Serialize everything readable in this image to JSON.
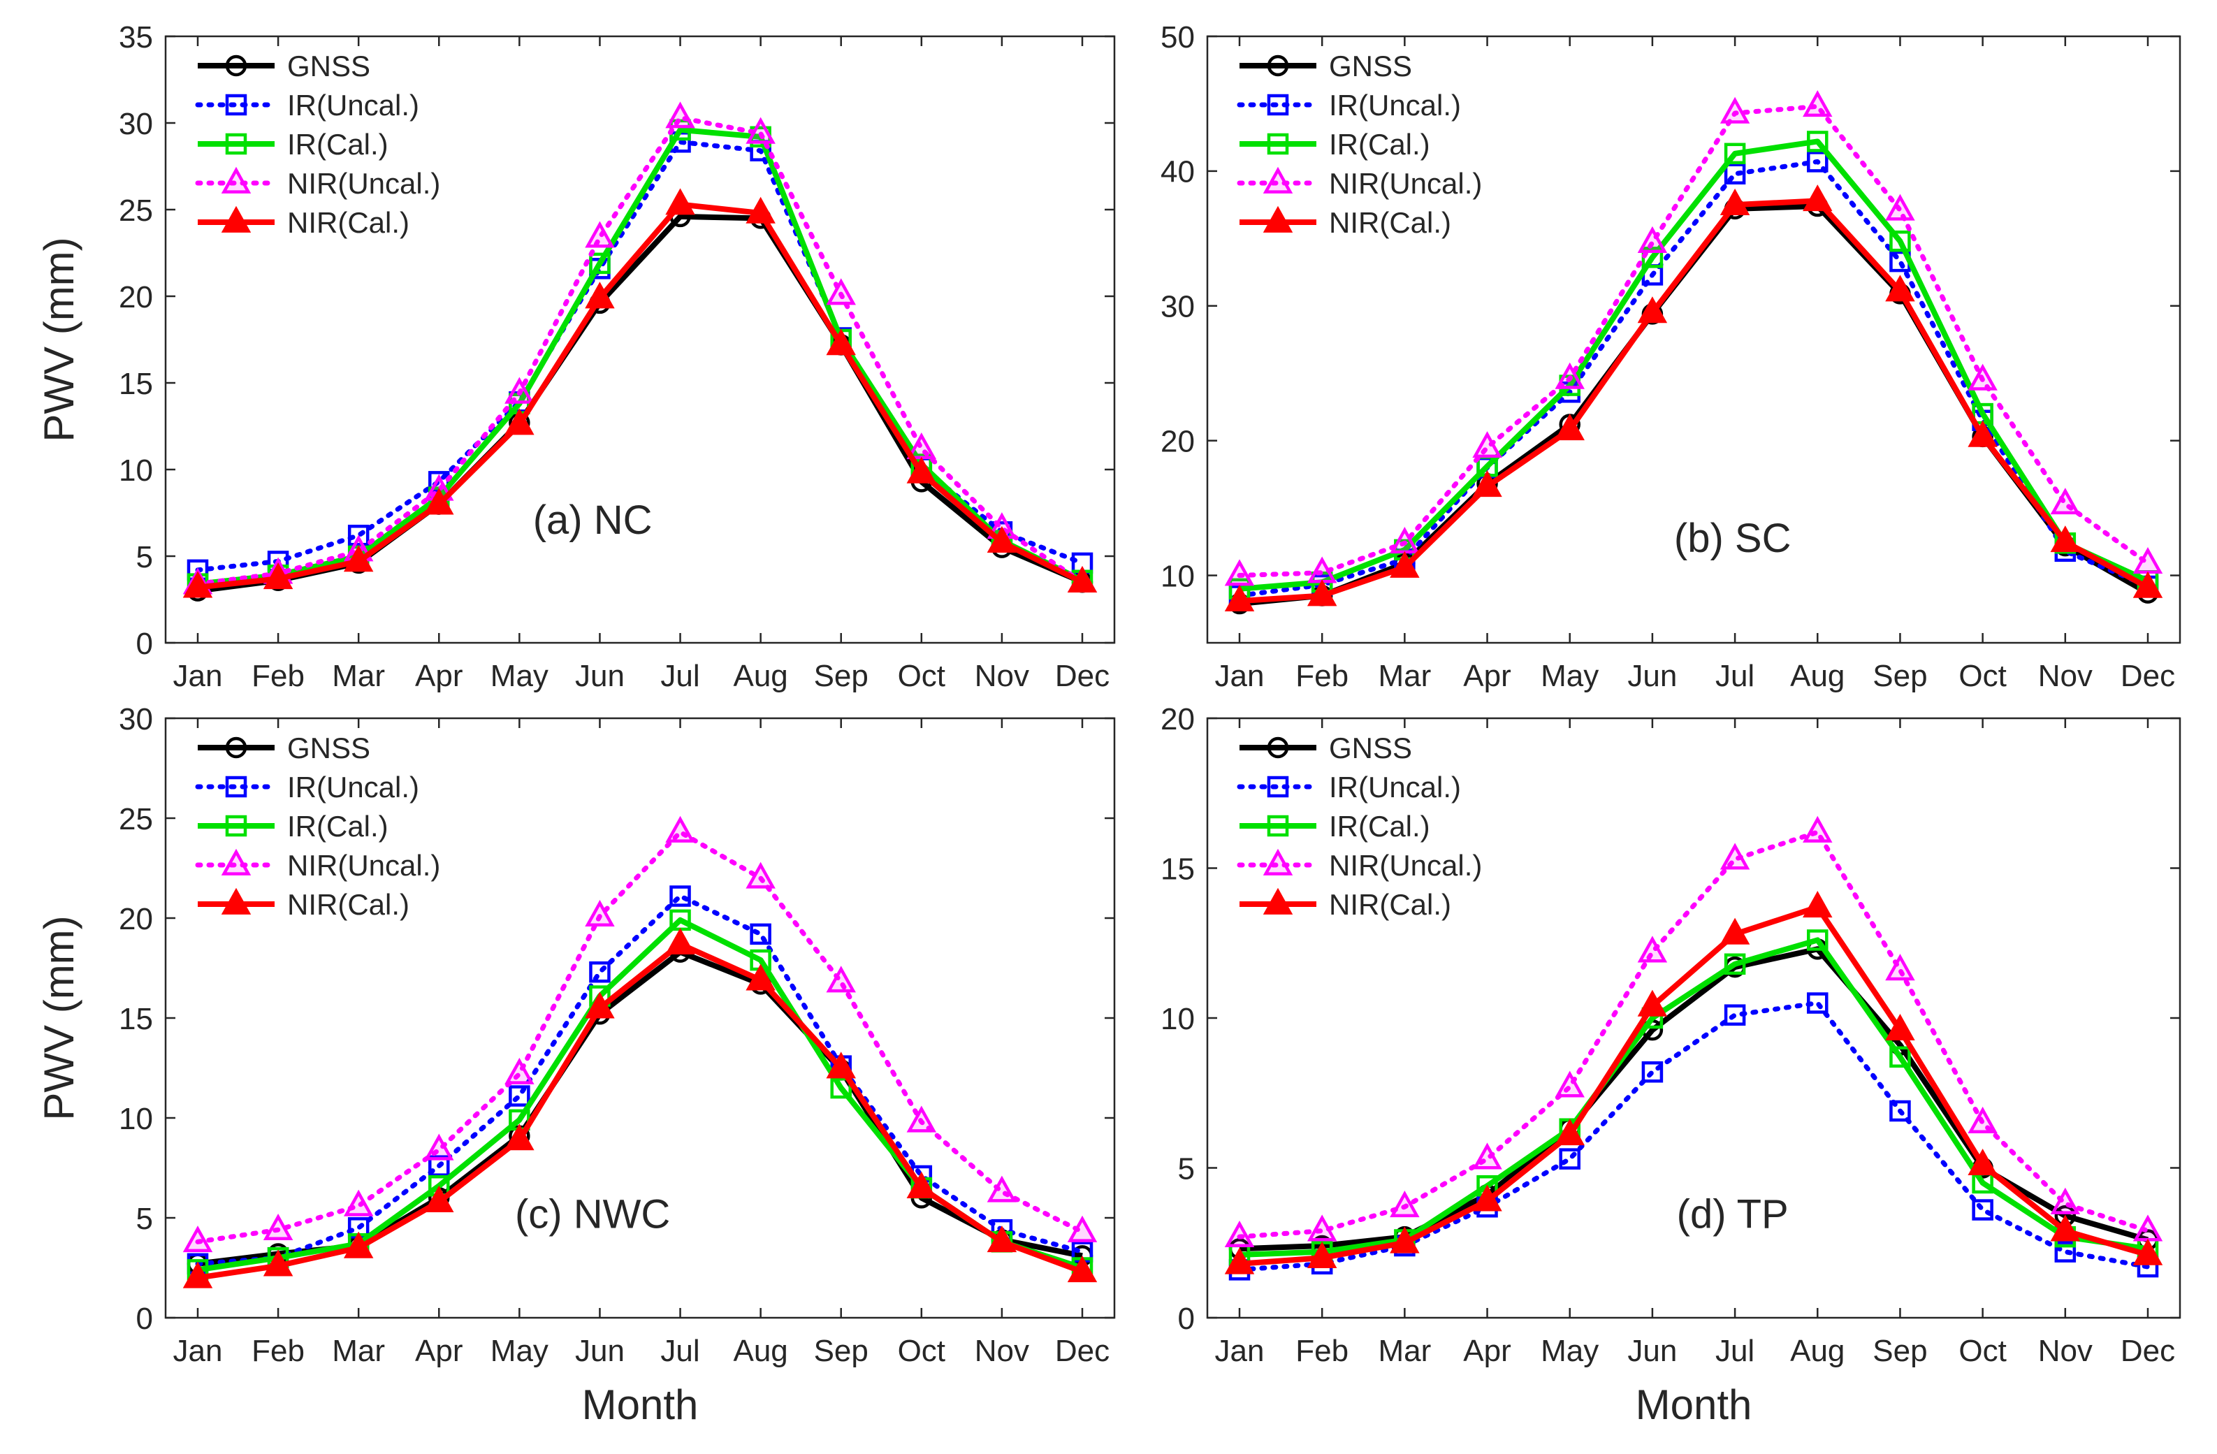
{
  "figure": {
    "shared_xlabel": "Month",
    "shared_ylabel": "PWV (mm)"
  },
  "series_styles": [
    {
      "name": "GNSS",
      "color": "#000000",
      "dash": "solid",
      "marker": "circle"
    },
    {
      "name": "IR(Uncal.)",
      "color": "#0000ff",
      "dash": "dotted",
      "marker": "square"
    },
    {
      "name": "IR(Cal.)",
      "color": "#00e000",
      "dash": "solid",
      "marker": "square"
    },
    {
      "name": "NIR(Uncal.)",
      "color": "#ff00ff",
      "dash": "dotted",
      "marker": "triangle"
    },
    {
      "name": "NIR(Cal.)",
      "color": "#ff0000",
      "dash": "solid",
      "marker": "triangle"
    }
  ],
  "chart_data": [
    {
      "type": "line",
      "title": "(a) NC",
      "xlabel": "",
      "ylabel": "PWV (mm)",
      "categories": [
        "Jan",
        "Feb",
        "Mar",
        "Apr",
        "May",
        "Jun",
        "Jul",
        "Aug",
        "Sep",
        "Oct",
        "Nov",
        "Dec"
      ],
      "ylim": [
        0,
        35
      ],
      "yticks": [
        0,
        5,
        10,
        15,
        20,
        25,
        30,
        35
      ],
      "legend": "top-left",
      "series": [
        {
          "name": "GNSS",
          "values": [
            3.0,
            3.6,
            4.6,
            8.0,
            12.7,
            19.6,
            24.6,
            24.5,
            17.2,
            9.3,
            5.5,
            3.5
          ]
        },
        {
          "name": "IR(Uncal.)",
          "values": [
            4.2,
            4.7,
            6.2,
            9.3,
            13.9,
            21.6,
            28.9,
            28.4,
            17.6,
            10.1,
            6.4,
            4.6
          ]
        },
        {
          "name": "IR(Cal.)",
          "values": [
            3.4,
            3.9,
            5.0,
            8.4,
            13.8,
            21.9,
            29.6,
            29.2,
            17.5,
            10.3,
            5.9,
            3.6
          ]
        },
        {
          "name": "NIR(Uncal.)",
          "values": [
            3.4,
            4.0,
            5.3,
            8.8,
            14.4,
            23.4,
            30.3,
            29.4,
            20.1,
            11.2,
            6.6,
            3.5
          ]
        },
        {
          "name": "NIR(Cal.)",
          "values": [
            3.2,
            3.7,
            4.7,
            8.0,
            12.6,
            19.9,
            25.3,
            24.8,
            17.2,
            9.8,
            5.8,
            3.5
          ]
        }
      ]
    },
    {
      "type": "line",
      "title": "(b) SC",
      "xlabel": "",
      "ylabel": "",
      "categories": [
        "Jan",
        "Feb",
        "Mar",
        "Apr",
        "May",
        "Jun",
        "Jul",
        "Aug",
        "Sep",
        "Oct",
        "Nov",
        "Dec"
      ],
      "ylim": [
        5,
        50
      ],
      "yticks": [
        10,
        20,
        30,
        40,
        50
      ],
      "legend": "top-left",
      "series": [
        {
          "name": "GNSS",
          "values": [
            7.9,
            8.5,
            10.9,
            16.8,
            21.2,
            29.4,
            37.2,
            37.4,
            30.9,
            20.3,
            12.2,
            8.7
          ]
        },
        {
          "name": "IR(Uncal.)",
          "values": [
            8.5,
            9.3,
            11.2,
            18.0,
            23.6,
            32.3,
            39.8,
            40.7,
            33.3,
            21.5,
            11.8,
            9.2
          ]
        },
        {
          "name": "IR(Cal.)",
          "values": [
            9.0,
            9.5,
            11.9,
            18.1,
            24.1,
            33.6,
            41.3,
            42.2,
            34.8,
            22.0,
            12.4,
            9.6
          ]
        },
        {
          "name": "NIR(Uncal.)",
          "values": [
            10.0,
            10.2,
            12.4,
            19.5,
            24.6,
            34.7,
            44.3,
            44.8,
            37.1,
            24.5,
            15.3,
            10.9
          ]
        },
        {
          "name": "NIR(Cal.)",
          "values": [
            8.1,
            8.5,
            10.6,
            16.6,
            20.8,
            29.5,
            37.5,
            37.8,
            31.1,
            20.3,
            12.5,
            9.1
          ]
        }
      ]
    },
    {
      "type": "line",
      "title": "(c) NWC",
      "xlabel": "Month",
      "ylabel": "PWV (mm)",
      "categories": [
        "Jan",
        "Feb",
        "Mar",
        "Apr",
        "May",
        "Jun",
        "Jul",
        "Aug",
        "Sep",
        "Oct",
        "Nov",
        "Dec"
      ],
      "ylim": [
        0,
        30
      ],
      "yticks": [
        0,
        5,
        10,
        15,
        20,
        25,
        30
      ],
      "legend": "top-left",
      "series": [
        {
          "name": "GNSS",
          "values": [
            2.7,
            3.2,
            3.6,
            6.0,
            9.1,
            15.2,
            18.3,
            16.7,
            12.4,
            6.0,
            3.9,
            3.1
          ]
        },
        {
          "name": "IR(Uncal.)",
          "values": [
            2.7,
            3.0,
            4.5,
            7.6,
            11.1,
            17.3,
            21.1,
            19.2,
            12.6,
            7.1,
            4.4,
            3.3
          ]
        },
        {
          "name": "IR(Cal.)",
          "values": [
            2.4,
            3.0,
            3.7,
            6.6,
            9.9,
            16.1,
            19.9,
            17.9,
            11.5,
            6.5,
            3.8,
            2.5
          ]
        },
        {
          "name": "NIR(Uncal.)",
          "values": [
            3.8,
            4.4,
            5.6,
            8.4,
            12.2,
            20.1,
            24.3,
            22.0,
            16.8,
            9.8,
            6.3,
            4.3
          ]
        },
        {
          "name": "NIR(Cal.)",
          "values": [
            2.0,
            2.6,
            3.5,
            5.8,
            8.9,
            15.5,
            18.7,
            16.9,
            12.5,
            6.5,
            3.8,
            2.3
          ]
        }
      ]
    },
    {
      "type": "line",
      "title": "(d) TP",
      "xlabel": "Month",
      "ylabel": "",
      "categories": [
        "Jan",
        "Feb",
        "Mar",
        "Apr",
        "May",
        "Jun",
        "Jul",
        "Aug",
        "Sep",
        "Oct",
        "Nov",
        "Dec"
      ],
      "ylim": [
        0,
        20
      ],
      "yticks": [
        0,
        5,
        10,
        15,
        20
      ],
      "legend": "top-left",
      "series": [
        {
          "name": "GNSS",
          "values": [
            2.3,
            2.4,
            2.7,
            4.1,
            6.3,
            9.6,
            11.7,
            12.3,
            9.1,
            5.0,
            3.4,
            2.6
          ]
        },
        {
          "name": "IR(Uncal.)",
          "values": [
            1.6,
            1.8,
            2.4,
            3.7,
            5.3,
            8.2,
            10.1,
            10.5,
            6.9,
            3.6,
            2.2,
            1.7
          ]
        },
        {
          "name": "IR(Cal.)",
          "values": [
            2.1,
            2.2,
            2.6,
            4.4,
            6.3,
            10.0,
            11.8,
            12.6,
            8.7,
            4.5,
            2.7,
            2.3
          ]
        },
        {
          "name": "NIR(Uncal.)",
          "values": [
            2.7,
            2.9,
            3.7,
            5.3,
            7.7,
            12.2,
            15.3,
            16.2,
            11.6,
            6.5,
            3.8,
            2.9
          ]
        },
        {
          "name": "NIR(Cal.)",
          "values": [
            1.8,
            2.0,
            2.5,
            3.9,
            6.1,
            10.4,
            12.8,
            13.7,
            9.6,
            5.1,
            2.9,
            2.1
          ]
        }
      ]
    }
  ]
}
